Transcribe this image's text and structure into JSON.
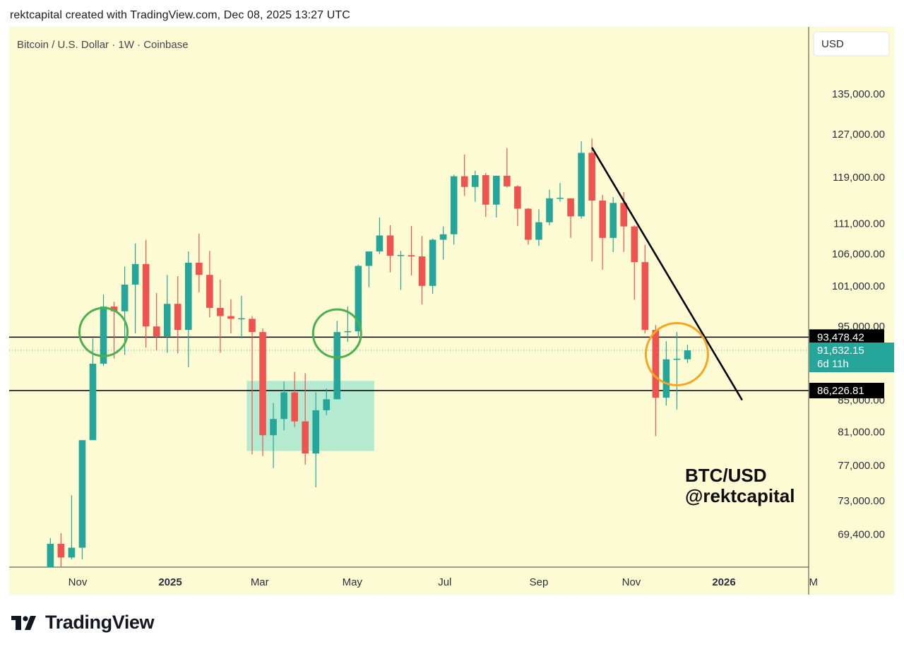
{
  "header": {
    "caption": "rektcapital created with TradingView.com, Dec 08, 2025 13:27 UTC"
  },
  "symbol_title": "Bitcoin / U.S. Dollar · 1W · Coinbase",
  "currency_button": "USD",
  "watermark": {
    "line1": "BTC/USD",
    "line2": "@rektcapital"
  },
  "footer": {
    "logo_text": "TradingView"
  },
  "colors": {
    "background": "#fdfbd4",
    "up": "#26a69a",
    "down": "#ef5350",
    "range_box": "#a6e6cf",
    "circle_green": "#4caf50",
    "circle_orange": "#f5a623",
    "line": "#000000",
    "current_price_tag": "#26a69a"
  },
  "chart_data": {
    "type": "candlestick",
    "title": "Bitcoin / U.S. Dollar · 1W · Coinbase",
    "interval": "1W",
    "price_axis": {
      "scale": "log",
      "ticks": [
        "135,000.00",
        "127,000.00",
        "119,000.00",
        "111,000.00",
        "106,000.00",
        "101,000.00",
        "95,000.00",
        "85,000.00",
        "81,000.00",
        "77,000.00",
        "73,000.00",
        "69,400.00"
      ],
      "ylim": [
        65000,
        150000
      ]
    },
    "time_axis": {
      "ticks": [
        {
          "label": "Nov",
          "date": "2024-11-01",
          "bold": false
        },
        {
          "label": "2025",
          "date": "2025-01-01",
          "bold": true
        },
        {
          "label": "Mar",
          "date": "2025-03-01",
          "bold": false
        },
        {
          "label": "May",
          "date": "2025-05-01",
          "bold": false
        },
        {
          "label": "Jul",
          "date": "2025-07-01",
          "bold": false
        },
        {
          "label": "Sep",
          "date": "2025-09-01",
          "bold": false
        },
        {
          "label": "Nov",
          "date": "2025-11-01",
          "bold": false
        },
        {
          "label": "2026",
          "date": "2026-01-01",
          "bold": true
        },
        {
          "label": "M",
          "date": "2026-03-01",
          "bold": false
        }
      ]
    },
    "candles": [
      {
        "date": "2024-10-14",
        "o": 62500,
        "h": 69000,
        "l": 62000,
        "c": 68400
      },
      {
        "date": "2024-10-21",
        "o": 68400,
        "h": 69500,
        "l": 65000,
        "c": 67000
      },
      {
        "date": "2024-10-28",
        "o": 67000,
        "h": 73600,
        "l": 66800,
        "c": 68000
      },
      {
        "date": "2024-11-04",
        "o": 68000,
        "h": 80000,
        "l": 66800,
        "c": 80000
      },
      {
        "date": "2024-11-11",
        "o": 80000,
        "h": 93300,
        "l": 80000,
        "c": 89800
      },
      {
        "date": "2024-11-18",
        "o": 89800,
        "h": 99700,
        "l": 89500,
        "c": 97900
      },
      {
        "date": "2024-11-25",
        "o": 97900,
        "h": 98600,
        "l": 90500,
        "c": 97200
      },
      {
        "date": "2024-12-02",
        "o": 97200,
        "h": 104000,
        "l": 91000,
        "c": 101200
      },
      {
        "date": "2024-12-09",
        "o": 101200,
        "h": 107700,
        "l": 94000,
        "c": 104400
      },
      {
        "date": "2024-12-16",
        "o": 104400,
        "h": 108300,
        "l": 92000,
        "c": 95000
      },
      {
        "date": "2024-12-23",
        "o": 95000,
        "h": 99900,
        "l": 91600,
        "c": 93600
      },
      {
        "date": "2024-12-30",
        "o": 93600,
        "h": 102700,
        "l": 91300,
        "c": 98300
      },
      {
        "date": "2025-01-06",
        "o": 98300,
        "h": 102500,
        "l": 91200,
        "c": 94500
      },
      {
        "date": "2025-01-13",
        "o": 94500,
        "h": 106400,
        "l": 89300,
        "c": 104600
      },
      {
        "date": "2025-01-20",
        "o": 104600,
        "h": 109300,
        "l": 100000,
        "c": 102700
      },
      {
        "date": "2025-01-27",
        "o": 102700,
        "h": 106500,
        "l": 96300,
        "c": 97700
      },
      {
        "date": "2025-02-03",
        "o": 97700,
        "h": 102000,
        "l": 91300,
        "c": 96500
      },
      {
        "date": "2025-02-10",
        "o": 96500,
        "h": 99000,
        "l": 94000,
        "c": 96100
      },
      {
        "date": "2025-02-17",
        "o": 96100,
        "h": 99500,
        "l": 93300,
        "c": 96100
      },
      {
        "date": "2025-02-24",
        "o": 96100,
        "h": 96500,
        "l": 78300,
        "c": 94200
      },
      {
        "date": "2025-03-03",
        "o": 94200,
        "h": 94700,
        "l": 78100,
        "c": 80600
      },
      {
        "date": "2025-03-10",
        "o": 80600,
        "h": 84600,
        "l": 76700,
        "c": 82600
      },
      {
        "date": "2025-03-17",
        "o": 82600,
        "h": 87400,
        "l": 81200,
        "c": 86000
      },
      {
        "date": "2025-03-24",
        "o": 86000,
        "h": 88700,
        "l": 81600,
        "c": 82300
      },
      {
        "date": "2025-03-31",
        "o": 82300,
        "h": 88500,
        "l": 77100,
        "c": 78400
      },
      {
        "date": "2025-04-07",
        "o": 78400,
        "h": 86000,
        "l": 74500,
        "c": 83700
      },
      {
        "date": "2025-04-14",
        "o": 83700,
        "h": 86500,
        "l": 83100,
        "c": 85100
      },
      {
        "date": "2025-04-21",
        "o": 85100,
        "h": 95800,
        "l": 85100,
        "c": 94200
      },
      {
        "date": "2025-04-28",
        "o": 94200,
        "h": 97900,
        "l": 92800,
        "c": 94300
      },
      {
        "date": "2025-05-05",
        "o": 94300,
        "h": 104300,
        "l": 93400,
        "c": 104100
      },
      {
        "date": "2025-05-12",
        "o": 104100,
        "h": 105800,
        "l": 100800,
        "c": 106400
      },
      {
        "date": "2025-05-19",
        "o": 106400,
        "h": 112000,
        "l": 106000,
        "c": 109000
      },
      {
        "date": "2025-05-26",
        "o": 109000,
        "h": 110700,
        "l": 103100,
        "c": 105700
      },
      {
        "date": "2025-06-02",
        "o": 105700,
        "h": 106500,
        "l": 100400,
        "c": 105800
      },
      {
        "date": "2025-06-09",
        "o": 105800,
        "h": 110600,
        "l": 102600,
        "c": 105600
      },
      {
        "date": "2025-06-16",
        "o": 105600,
        "h": 108900,
        "l": 98200,
        "c": 101000
      },
      {
        "date": "2025-06-23",
        "o": 101000,
        "h": 108500,
        "l": 99800,
        "c": 108300
      },
      {
        "date": "2025-06-30",
        "o": 108300,
        "h": 110500,
        "l": 105100,
        "c": 109200
      },
      {
        "date": "2025-07-07",
        "o": 109200,
        "h": 119500,
        "l": 107500,
        "c": 119200
      },
      {
        "date": "2025-07-14",
        "o": 119200,
        "h": 123200,
        "l": 115700,
        "c": 117300
      },
      {
        "date": "2025-07-21",
        "o": 117300,
        "h": 120200,
        "l": 114700,
        "c": 119400
      },
      {
        "date": "2025-07-28",
        "o": 119400,
        "h": 119800,
        "l": 112100,
        "c": 114200
      },
      {
        "date": "2025-08-04",
        "o": 114200,
        "h": 119300,
        "l": 112000,
        "c": 119300
      },
      {
        "date": "2025-08-11",
        "o": 119300,
        "h": 124400,
        "l": 117200,
        "c": 117400
      },
      {
        "date": "2025-08-18",
        "o": 117400,
        "h": 117600,
        "l": 110600,
        "c": 113500
      },
      {
        "date": "2025-08-25",
        "o": 113500,
        "h": 113600,
        "l": 107500,
        "c": 108300
      },
      {
        "date": "2025-09-01",
        "o": 108300,
        "h": 113400,
        "l": 107300,
        "c": 111200
      },
      {
        "date": "2025-09-08",
        "o": 111200,
        "h": 116800,
        "l": 110700,
        "c": 115300
      },
      {
        "date": "2025-09-15",
        "o": 115300,
        "h": 118000,
        "l": 114700,
        "c": 115300
      },
      {
        "date": "2025-09-22",
        "o": 115300,
        "h": 115300,
        "l": 108600,
        "c": 112200
      },
      {
        "date": "2025-09-29",
        "o": 112200,
        "h": 125700,
        "l": 111800,
        "c": 123500
      },
      {
        "date": "2025-10-06",
        "o": 123500,
        "h": 126200,
        "l": 104800,
        "c": 114900
      },
      {
        "date": "2025-10-13",
        "o": 114900,
        "h": 115900,
        "l": 103500,
        "c": 108600
      },
      {
        "date": "2025-10-20",
        "o": 108600,
        "h": 115500,
        "l": 106300,
        "c": 114500
      },
      {
        "date": "2025-10-27",
        "o": 114500,
        "h": 116400,
        "l": 106300,
        "c": 110500
      },
      {
        "date": "2025-11-03",
        "o": 110500,
        "h": 110700,
        "l": 98900,
        "c": 104700
      },
      {
        "date": "2025-11-10",
        "o": 104700,
        "h": 107500,
        "l": 94000,
        "c": 94500
      },
      {
        "date": "2025-11-17",
        "o": 94500,
        "h": 95200,
        "l": 80500,
        "c": 85300
      },
      {
        "date": "2025-11-24",
        "o": 85300,
        "h": 92900,
        "l": 84300,
        "c": 90400
      },
      {
        "date": "2025-12-01",
        "o": 90400,
        "h": 94200,
        "l": 83800,
        "c": 90400
      },
      {
        "date": "2025-12-08",
        "o": 90400,
        "h": 92400,
        "l": 89900,
        "c": 91632
      }
    ],
    "horizontal_levels": [
      {
        "price": 93478.42,
        "label": "93,478.42"
      },
      {
        "price": 86226.81,
        "label": "86,226.81"
      }
    ],
    "current_price": {
      "price": 91632.15,
      "label": "91,632.15",
      "countdown": "6d 11h"
    },
    "trendline": {
      "from": {
        "date": "2025-10-06",
        "price": 124500
      },
      "to": {
        "date": "2026-01-13",
        "price": 85000
      }
    },
    "range_box": {
      "from_date": "2025-02-24",
      "to_date": "2025-05-12",
      "top": 87500,
      "bottom": 78700
    },
    "circles": [
      {
        "center_date": "2024-11-18",
        "center_price": 94200,
        "color": "green"
      },
      {
        "center_date": "2025-04-21",
        "center_price": 94000,
        "color": "green"
      },
      {
        "center_date": "2025-12-01",
        "center_price": 91100,
        "color": "orange"
      }
    ]
  }
}
